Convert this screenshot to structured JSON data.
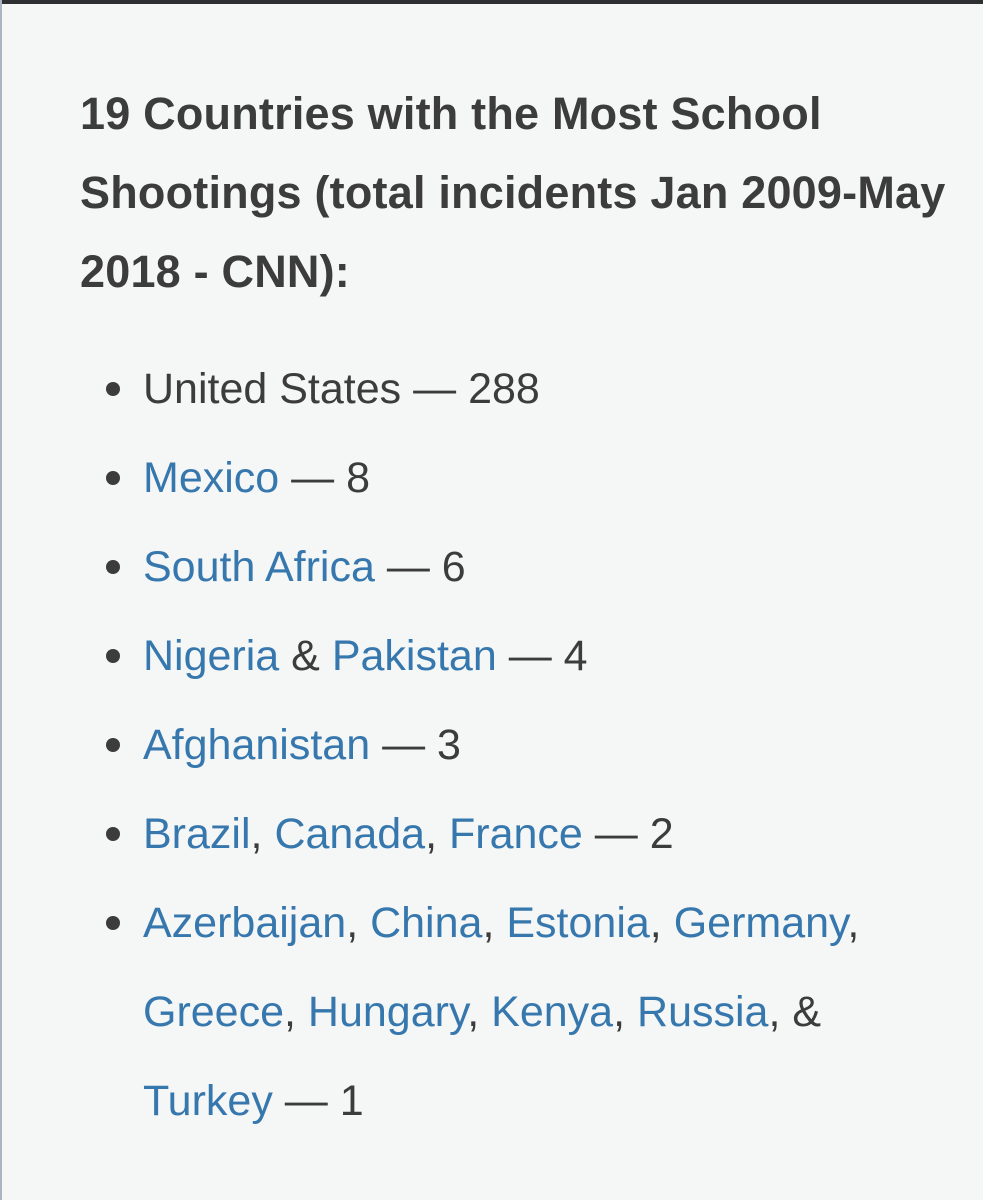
{
  "heading": "19 Countries with the Most School Shootings (total incidents Jan 2009-May 2018 - CNN):",
  "items": [
    {
      "us": "United States",
      "dash": " — ",
      "count": "288"
    },
    {
      "mexico": "Mexico",
      "dash": " — ",
      "count": "8"
    },
    {
      "south_africa": "South Africa",
      "dash": " — ",
      "count": "6"
    },
    {
      "nigeria": "Nigeria",
      "amp": " & ",
      "pakistan": "Pakistan",
      "dash": " — ",
      "count": "4"
    },
    {
      "afghanistan": "Afghanistan",
      "dash": " — ",
      "count": "3"
    },
    {
      "brazil": "Brazil",
      "canada": "Canada",
      "france": "France",
      "comma": ", ",
      "dash": " — ",
      "count": "2"
    },
    {
      "azerbaijan": "Azerbaijan",
      "china": "China",
      "estonia": "Estonia",
      "germany": "Germany",
      "greece": "Greece",
      "hungary": "Hungary",
      "kenya": "Kenya",
      "russia": "Russia",
      "turkey": "Turkey",
      "comma": ", ",
      "last_sep": ", & ",
      "dash": " — ",
      "count": "1"
    }
  ]
}
